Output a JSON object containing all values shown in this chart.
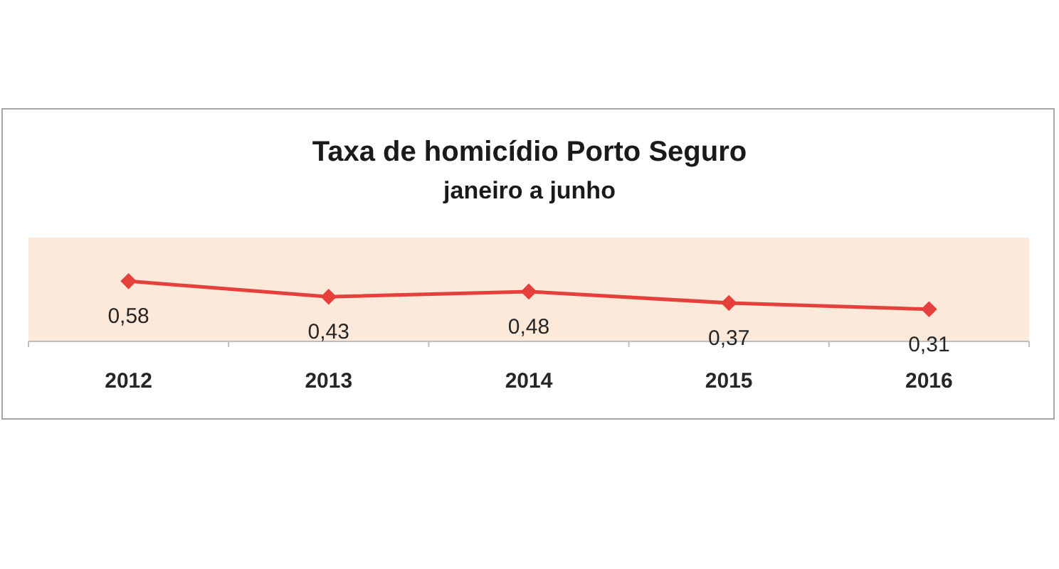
{
  "chart_data": {
    "type": "line",
    "title": "Taxa de homicídio Porto Seguro",
    "subtitle": "janeiro a junho",
    "categories": [
      "2012",
      "2013",
      "2014",
      "2015",
      "2016"
    ],
    "values": [
      0.58,
      0.43,
      0.48,
      0.37,
      0.31
    ],
    "color": "#e5403c",
    "value_labels": [
      "0,58",
      "0,43",
      "0,48",
      "0,37",
      "0,31"
    ],
    "ylim": [
      0,
      1
    ],
    "tick_labels": "x",
    "marker": "diamond",
    "line_style": "solid"
  }
}
